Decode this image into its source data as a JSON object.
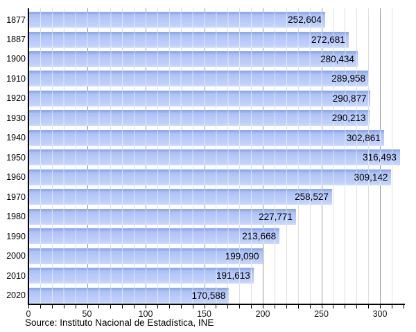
{
  "chart_data": {
    "type": "bar",
    "orientation": "horizontal",
    "title": "",
    "categories": [
      "1877",
      "1887",
      "1900",
      "1910",
      "1920",
      "1930",
      "1940",
      "1950",
      "1960",
      "1970",
      "1980",
      "1990",
      "2000",
      "2010",
      "2020"
    ],
    "values": [
      252604,
      272681,
      280434,
      289958,
      290877,
      290213,
      302861,
      316493,
      309142,
      258527,
      227771,
      213668,
      199090,
      191613,
      170588
    ],
    "value_labels": [
      "252,604",
      "272,681",
      "280,434",
      "289,958",
      "290,877",
      "290,213",
      "302,861",
      "316,493",
      "309,142",
      "258,527",
      "227,771",
      "213,668",
      "199,090",
      "191,613",
      "170,588"
    ],
    "x_axis": {
      "min": 0,
      "max": 320000,
      "unit_divisor": 1000,
      "major_tick_interval": 50000,
      "minor_tick_interval": 10000,
      "tick_values": [
        0,
        50000,
        100000,
        150000,
        200000,
        250000,
        300000
      ],
      "tick_labels": [
        "0",
        "50",
        "100",
        "150",
        "200",
        "250",
        "300"
      ]
    },
    "grid": {
      "minor_lines": true,
      "major_lines": true,
      "legend": "none"
    },
    "source_note": "Source: Instituto Nacional de Estadística, INE",
    "colors": {
      "bar_fill": "#b7c9f8",
      "bar_top_edge": "#8fa9e9",
      "bar_fill_bottom": "#cfdbfb",
      "grid_minor": "#dedede",
      "grid_major": "#9a9a9a",
      "axis": "#000000",
      "text": "#000000"
    }
  }
}
